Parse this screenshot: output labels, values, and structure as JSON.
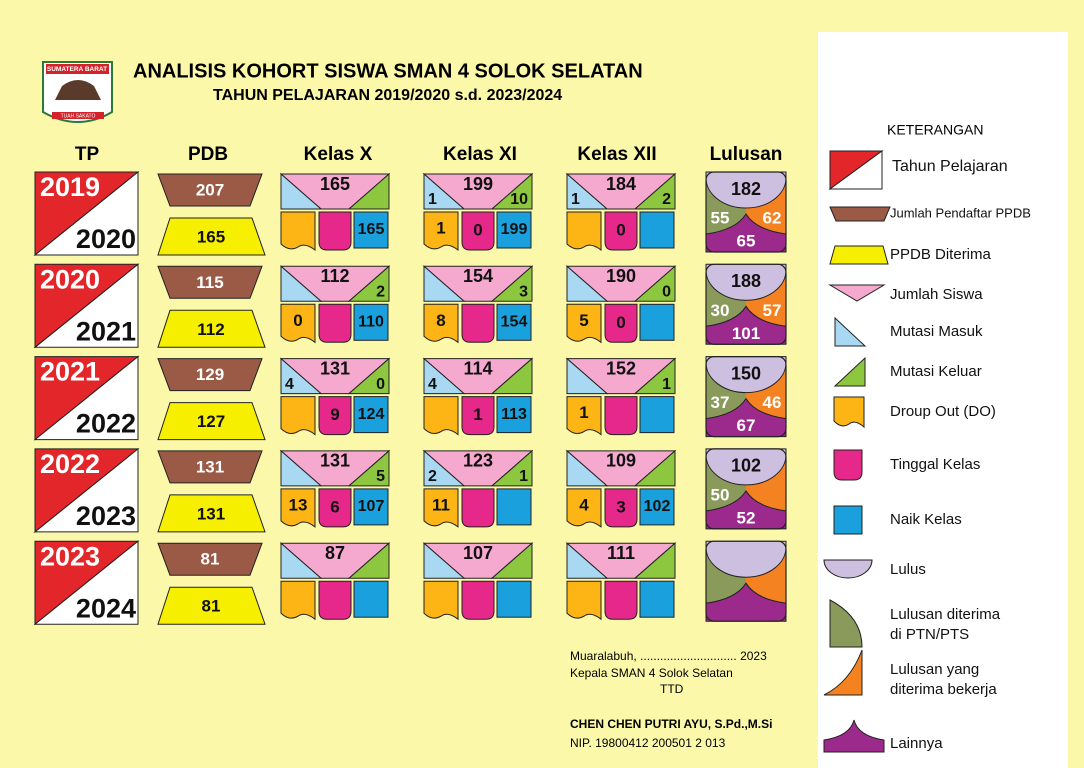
{
  "header": {
    "logo_top": "SUMATERA BARAT",
    "logo_bottom": "TUAH SAKATO",
    "title": "ANALISIS KOHORT SISWA SMAN 4 SOLOK SELATAN",
    "subtitle": "TAHUN PELAJARAN 2019/2020 s.d. 2023/2024"
  },
  "columns": [
    "TP",
    "PDB",
    "Kelas X",
    "Kelas XI",
    "Kelas XII",
    "Lulusan"
  ],
  "rows": [
    {
      "tp": [
        "2019",
        "2020"
      ],
      "pdb": {
        "registered": 207,
        "accepted": 165
      },
      "classes": [
        {
          "siswa": 165,
          "masuk": null,
          "keluar": null,
          "do": null,
          "tinggal": null,
          "naik": 165
        },
        {
          "siswa": 199,
          "masuk": 1,
          "keluar": 10,
          "do": 1,
          "tinggal": 0,
          "naik": 199
        },
        {
          "siswa": 184,
          "masuk": 1,
          "keluar": 2,
          "do": null,
          "tinggal": 0,
          "naik": null
        }
      ],
      "lulusan": {
        "lulus": 182,
        "ptn": 55,
        "kerja": 62,
        "lainnya": 65
      }
    },
    {
      "tp": [
        "2020",
        "2021"
      ],
      "pdb": {
        "registered": 115,
        "accepted": 112
      },
      "classes": [
        {
          "siswa": 112,
          "masuk": null,
          "keluar": 2,
          "do": 0,
          "tinggal": null,
          "naik": 110
        },
        {
          "siswa": 154,
          "masuk": null,
          "keluar": 3,
          "do": 8,
          "tinggal": null,
          "naik": 154
        },
        {
          "siswa": 190,
          "masuk": null,
          "keluar": 0,
          "do": 5,
          "tinggal": 0,
          "naik": null
        }
      ],
      "lulusan": {
        "lulus": 188,
        "ptn": 30,
        "kerja": 57,
        "lainnya": 101
      }
    },
    {
      "tp": [
        "2021",
        "2022"
      ],
      "pdb": {
        "registered": 129,
        "accepted": 127
      },
      "classes": [
        {
          "siswa": 131,
          "masuk": 4,
          "keluar": 0,
          "do": null,
          "tinggal": 9,
          "naik": 124
        },
        {
          "siswa": 114,
          "masuk": 4,
          "keluar": null,
          "do": null,
          "tinggal": 1,
          "naik": 113
        },
        {
          "siswa": 152,
          "masuk": null,
          "keluar": 1,
          "do": 1,
          "tinggal": null,
          "naik": null
        }
      ],
      "lulusan": {
        "lulus": 150,
        "ptn": 37,
        "kerja": 46,
        "lainnya": 67
      }
    },
    {
      "tp": [
        "2022",
        "2023"
      ],
      "pdb": {
        "registered": 131,
        "accepted": 131
      },
      "classes": [
        {
          "siswa": 131,
          "masuk": null,
          "keluar": 5,
          "do": 13,
          "tinggal": 6,
          "naik": 107
        },
        {
          "siswa": 123,
          "masuk": 2,
          "keluar": 1,
          "do": 11,
          "tinggal": null,
          "naik": null
        },
        {
          "siswa": 109,
          "masuk": null,
          "keluar": null,
          "do": 4,
          "tinggal": 3,
          "naik": 102
        }
      ],
      "lulusan": {
        "lulus": 102,
        "ptn": 50,
        "kerja": null,
        "lainnya": 52
      }
    },
    {
      "tp": [
        "2023",
        "2024"
      ],
      "pdb": {
        "registered": 81,
        "accepted": 81
      },
      "classes": [
        {
          "siswa": 87,
          "masuk": null,
          "keluar": null,
          "do": null,
          "tinggal": null,
          "naik": null
        },
        {
          "siswa": 107,
          "masuk": null,
          "keluar": null,
          "do": null,
          "tinggal": null,
          "naik": null
        },
        {
          "siswa": 111,
          "masuk": null,
          "keluar": null,
          "do": null,
          "tinggal": null,
          "naik": null
        }
      ],
      "lulusan": {
        "lulus": null,
        "ptn": null,
        "kerja": null,
        "lainnya": null
      }
    }
  ],
  "legend": {
    "title": "KETERANGAN",
    "items": [
      [
        "Tahun Pelajaran"
      ],
      [
        "Jumlah Pendaftar PPDB"
      ],
      [
        "PPDB Diterima"
      ],
      [
        "Jumlah Siswa"
      ],
      [
        "Mutasi Masuk"
      ],
      [
        "Mutasi Keluar"
      ],
      [
        "Droup Out (DO)"
      ],
      [
        "Tinggal Kelas"
      ],
      [
        "Naik Kelas"
      ],
      [
        "Lulus"
      ],
      [
        "Lulusan diterima",
        "di PTN/PTS"
      ],
      [
        "Lulusan yang",
        "diterima bekerja"
      ],
      [
        "Lainnya"
      ]
    ]
  },
  "signature": {
    "place_date": "Muaralabuh, ............................. 2023",
    "position": "Kepala SMAN 4 Solok Selatan",
    "sign": "TTD",
    "name": "CHEN CHEN PUTRI AYU, S.Pd.,M.Si",
    "nip": "NIP. 19800412 200501 2 013"
  }
}
